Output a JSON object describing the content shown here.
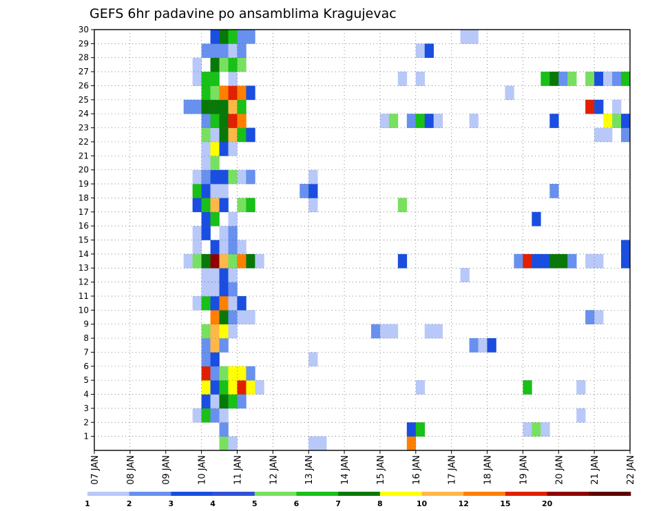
{
  "chart_data": {
    "type": "heatmap",
    "title": "GEFS 6hr padavine po ansamblima Kragujevac",
    "xlabel": "",
    "ylabel": "",
    "x_ticks": [
      "07 JAN",
      "08 JAN",
      "09 JAN",
      "10 JAN",
      "11 JAN",
      "12 JAN",
      "13 JAN",
      "14 JAN",
      "15 JAN",
      "16 JAN",
      "17 JAN",
      "18 JAN",
      "19 JAN",
      "20 JAN",
      "21 JAN",
      "22 JAN"
    ],
    "y_ticks": [
      1,
      2,
      3,
      4,
      5,
      6,
      7,
      8,
      9,
      10,
      11,
      12,
      13,
      14,
      15,
      16,
      17,
      18,
      19,
      20,
      21,
      22,
      23,
      24,
      25,
      26,
      27,
      28,
      29,
      30
    ],
    "xlim": [
      "07 JAN 00z",
      "22 JAN 00z"
    ],
    "ylim": [
      0,
      30
    ],
    "grid": true,
    "timestep_hours": 6,
    "legend": {
      "position": "bottom",
      "levels": [
        "1",
        "2",
        "3",
        "4",
        "5",
        "6",
        "7",
        "8",
        "10",
        "12",
        "15",
        "20"
      ],
      "colors": [
        "#b8c8f8",
        "#6890ee",
        "#1a4ee0",
        "#3050d8",
        "#78e060",
        "#18c018",
        "#087808",
        "#ffff00",
        "#ffb848",
        "#ff8000",
        "#e02000",
        "#900000",
        "#600000"
      ]
    },
    "cells": [
      [
        "10 JAN 12z",
        0,
        "#78e060"
      ],
      [
        "10 JAN 18z",
        0,
        "#b8c8f8"
      ],
      [
        "15 JAN 18z",
        0,
        "#ff8000"
      ],
      [
        "13 JAN 00z",
        0,
        "#b8c8f8"
      ],
      [
        "13 JAN 06z",
        0,
        "#b8c8f8"
      ],
      [
        "10 JAN 12z",
        1,
        "#6890ee"
      ],
      [
        "15 JAN 18z",
        1,
        "#1a4ee0"
      ],
      [
        "16 JAN 00z",
        1,
        "#18c018"
      ],
      [
        "19 JAN 00z",
        1,
        "#b8c8f8"
      ],
      [
        "19 JAN 06z",
        1,
        "#78e060"
      ],
      [
        "19 JAN 12z",
        1,
        "#b8c8f8"
      ],
      [
        "09 JAN 18z",
        2,
        "#b8c8f8"
      ],
      [
        "10 JAN 00z",
        2,
        "#18c018"
      ],
      [
        "10 JAN 06z",
        2,
        "#6890ee"
      ],
      [
        "10 JAN 12z",
        2,
        "#b8c8f8"
      ],
      [
        "20 JAN 12z",
        2,
        "#b8c8f8"
      ],
      [
        "10 JAN 00z",
        3,
        "#1a4ee0"
      ],
      [
        "10 JAN 06z",
        3,
        "#b8c8f8"
      ],
      [
        "10 JAN 12z",
        3,
        "#087808"
      ],
      [
        "10 JAN 18z",
        3,
        "#18c018"
      ],
      [
        "11 JAN 00z",
        3,
        "#6890ee"
      ],
      [
        "10 JAN 00z",
        4,
        "#ffff00"
      ],
      [
        "10 JAN 06z",
        4,
        "#1a4ee0"
      ],
      [
        "10 JAN 12z",
        4,
        "#18c018"
      ],
      [
        "10 JAN 18z",
        4,
        "#ffff00"
      ],
      [
        "11 JAN 00z",
        4,
        "#e02000"
      ],
      [
        "11 JAN 06z",
        4,
        "#ffff00"
      ],
      [
        "11 JAN 12z",
        4,
        "#b8c8f8"
      ],
      [
        "16 JAN 00z",
        4,
        "#b8c8f8"
      ],
      [
        "19 JAN 00z",
        4,
        "#18c018"
      ],
      [
        "20 JAN 12z",
        4,
        "#b8c8f8"
      ],
      [
        "10 JAN 00z",
        5,
        "#e02000"
      ],
      [
        "10 JAN 06z",
        5,
        "#6890ee"
      ],
      [
        "10 JAN 12z",
        5,
        "#78e060"
      ],
      [
        "10 JAN 18z",
        5,
        "#ffff00"
      ],
      [
        "11 JAN 00z",
        5,
        "#ffff00"
      ],
      [
        "11 JAN 06z",
        5,
        "#6890ee"
      ],
      [
        "10 JAN 00z",
        6,
        "#6890ee"
      ],
      [
        "10 JAN 06z",
        6,
        "#1a4ee0"
      ],
      [
        "13 JAN 00z",
        6,
        "#b8c8f8"
      ],
      [
        "10 JAN 00z",
        7,
        "#6890ee"
      ],
      [
        "10 JAN 06z",
        7,
        "#ffb848"
      ],
      [
        "10 JAN 12z",
        7,
        "#6890ee"
      ],
      [
        "17 JAN 12z",
        7,
        "#6890ee"
      ],
      [
        "17 JAN 18z",
        7,
        "#b8c8f8"
      ],
      [
        "18 JAN 00z",
        7,
        "#1a4ee0"
      ],
      [
        "10 JAN 00z",
        8,
        "#78e060"
      ],
      [
        "10 JAN 06z",
        8,
        "#ffb848"
      ],
      [
        "10 JAN 12z",
        8,
        "#ffff00"
      ],
      [
        "10 JAN 18z",
        8,
        "#b8c8f8"
      ],
      [
        "14 JAN 18z",
        8,
        "#6890ee"
      ],
      [
        "15 JAN 00z",
        8,
        "#b8c8f8"
      ],
      [
        "15 JAN 06z",
        8,
        "#b8c8f8"
      ],
      [
        "16 JAN 06z",
        8,
        "#b8c8f8"
      ],
      [
        "16 JAN 12z",
        8,
        "#b8c8f8"
      ],
      [
        "10 JAN 06z",
        9,
        "#ff8000"
      ],
      [
        "10 JAN 12z",
        9,
        "#087808"
      ],
      [
        "10 JAN 18z",
        9,
        "#6890ee"
      ],
      [
        "11 JAN 00z",
        9,
        "#b8c8f8"
      ],
      [
        "11 JAN 06z",
        9,
        "#b8c8f8"
      ],
      [
        "20 JAN 18z",
        9,
        "#6890ee"
      ],
      [
        "21 JAN 00z",
        9,
        "#b8c8f8"
      ],
      [
        "09 JAN 18z",
        10,
        "#b8c8f8"
      ],
      [
        "10 JAN 00z",
        10,
        "#18c018"
      ],
      [
        "10 JAN 06z",
        10,
        "#1a4ee0"
      ],
      [
        "10 JAN 12z",
        10,
        "#ff8000"
      ],
      [
        "10 JAN 18z",
        10,
        "#b8c8f8"
      ],
      [
        "11 JAN 00z",
        10,
        "#1a4ee0"
      ],
      [
        "10 JAN 00z",
        11,
        "#b8c8f8"
      ],
      [
        "10 JAN 06z",
        11,
        "#b8c8f8"
      ],
      [
        "10 JAN 12z",
        11,
        "#1a4ee0"
      ],
      [
        "10 JAN 18z",
        11,
        "#6890ee"
      ],
      [
        "10 JAN 00z",
        12,
        "#b8c8f8"
      ],
      [
        "10 JAN 06z",
        12,
        "#b8c8f8"
      ],
      [
        "10 JAN 12z",
        12,
        "#1a4ee0"
      ],
      [
        "10 JAN 18z",
        12,
        "#b8c8f8"
      ],
      [
        "17 JAN 06z",
        12,
        "#b8c8f8"
      ],
      [
        "10 JAN 06z",
        13,
        "#087808"
      ],
      [
        "10 JAN 12z",
        13,
        "#ffff00"
      ],
      [
        "10 JAN 18z",
        13,
        "#78e060"
      ],
      [
        "11 JAN 00z",
        13,
        "#6890ee"
      ],
      [
        "09 JAN 12z",
        13,
        "#b8c8f8"
      ],
      [
        "09 JAN 18z",
        13,
        "#78e060"
      ],
      [
        "10 JAN 00z",
        13,
        "#087808"
      ],
      [
        "10 JAN 06z",
        13,
        "#900000"
      ],
      [
        "10 JAN 12z",
        13,
        "#ffb848"
      ],
      [
        "10 JAN 18z",
        13,
        "#78e060"
      ],
      [
        "11 JAN 00z",
        13,
        "#ff8000"
      ],
      [
        "11 JAN 06z",
        13,
        "#087808"
      ],
      [
        "11 JAN 12z",
        13,
        "#b8c8f8"
      ],
      [
        "15 JAN 12z",
        13,
        "#1a4ee0"
      ],
      [
        "18 JAN 18z",
        13,
        "#6890ee"
      ],
      [
        "19 JAN 00z",
        13,
        "#e02000"
      ],
      [
        "19 JAN 06z",
        13,
        "#1a4ee0"
      ],
      [
        "19 JAN 12z",
        13,
        "#1a4ee0"
      ],
      [
        "19 JAN 18z",
        13,
        "#087808"
      ],
      [
        "20 JAN 00z",
        13,
        "#087808"
      ],
      [
        "20 JAN 06z",
        13,
        "#6890ee"
      ],
      [
        "20 JAN 18z",
        13,
        "#b8c8f8"
      ],
      [
        "21 JAN 00z",
        13,
        "#b8c8f8"
      ],
      [
        "21 JAN 18z",
        13,
        "#1a4ee0"
      ],
      [
        "09 JAN 18z",
        14,
        "#b8c8f8"
      ],
      [
        "10 JAN 06z",
        14,
        "#1a4ee0"
      ],
      [
        "10 JAN 12z",
        14,
        "#b8c8f8"
      ],
      [
        "10 JAN 18z",
        14,
        "#6890ee"
      ],
      [
        "11 JAN 00z",
        14,
        "#b8c8f8"
      ],
      [
        "21 JAN 18z",
        14,
        "#1a4ee0"
      ],
      [
        "09 JAN 18z",
        15,
        "#b8c8f8"
      ],
      [
        "10 JAN 00z",
        15,
        "#1a4ee0"
      ],
      [
        "10 JAN 12z",
        15,
        "#b8c8f8"
      ],
      [
        "10 JAN 18z",
        15,
        "#6890ee"
      ],
      [
        "10 JAN 00z",
        16,
        "#1a4ee0"
      ],
      [
        "10 JAN 06z",
        16,
        "#18c018"
      ],
      [
        "10 JAN 18z",
        16,
        "#b8c8f8"
      ],
      [
        "19 JAN 06z",
        16,
        "#1a4ee0"
      ],
      [
        "09 JAN 18z",
        17,
        "#1a4ee0"
      ],
      [
        "10 JAN 00z",
        17,
        "#18c018"
      ],
      [
        "10 JAN 06z",
        17,
        "#ffb848"
      ],
      [
        "10 JAN 12z",
        17,
        "#1a4ee0"
      ],
      [
        "11 JAN 00z",
        17,
        "#78e060"
      ],
      [
        "11 JAN 06z",
        17,
        "#18c018"
      ],
      [
        "13 JAN 00z",
        17,
        "#b8c8f8"
      ],
      [
        "15 JAN 12z",
        17,
        "#78e060"
      ],
      [
        "09 JAN 18z",
        18,
        "#18c018"
      ],
      [
        "10 JAN 00z",
        18,
        "#1a4ee0"
      ],
      [
        "10 JAN 06z",
        18,
        "#b8c8f8"
      ],
      [
        "10 JAN 12z",
        18,
        "#b8c8f8"
      ],
      [
        "12 JAN 18z",
        18,
        "#6890ee"
      ],
      [
        "13 JAN 00z",
        18,
        "#1a4ee0"
      ],
      [
        "19 JAN 18z",
        18,
        "#6890ee"
      ],
      [
        "09 JAN 18z",
        19,
        "#b8c8f8"
      ],
      [
        "10 JAN 00z",
        19,
        "#6890ee"
      ],
      [
        "10 JAN 06z",
        19,
        "#1a4ee0"
      ],
      [
        "10 JAN 12z",
        19,
        "#1a4ee0"
      ],
      [
        "10 JAN 18z",
        19,
        "#78e060"
      ],
      [
        "11 JAN 00z",
        19,
        "#b8c8f8"
      ],
      [
        "11 JAN 06z",
        19,
        "#6890ee"
      ],
      [
        "13 JAN 00z",
        19,
        "#b8c8f8"
      ],
      [
        "10 JAN 00z",
        20,
        "#b8c8f8"
      ],
      [
        "10 JAN 06z",
        20,
        "#78e060"
      ],
      [
        "10 JAN 00z",
        21,
        "#b8c8f8"
      ],
      [
        "10 JAN 06z",
        21,
        "#ffff00"
      ],
      [
        "10 JAN 12z",
        21,
        "#1a4ee0"
      ],
      [
        "10 JAN 18z",
        21,
        "#b8c8f8"
      ],
      [
        "10 JAN 00z",
        22,
        "#78e060"
      ],
      [
        "10 JAN 06z",
        22,
        "#b8c8f8"
      ],
      [
        "10 JAN 12z",
        22,
        "#087808"
      ],
      [
        "10 JAN 18z",
        22,
        "#ffb848"
      ],
      [
        "11 JAN 00z",
        22,
        "#18c018"
      ],
      [
        "11 JAN 06z",
        22,
        "#1a4ee0"
      ],
      [
        "21 JAN 00z",
        22,
        "#b8c8f8"
      ],
      [
        "21 JAN 06z",
        22,
        "#b8c8f8"
      ],
      [
        "21 JAN 18z",
        22,
        "#6890ee"
      ],
      [
        "10 JAN 00z",
        23,
        "#6890ee"
      ],
      [
        "10 JAN 06z",
        23,
        "#18c018"
      ],
      [
        "10 JAN 12z",
        23,
        "#087808"
      ],
      [
        "10 JAN 18z",
        23,
        "#e02000"
      ],
      [
        "11 JAN 00z",
        23,
        "#ff8000"
      ],
      [
        "15 JAN 00z",
        23,
        "#b8c8f8"
      ],
      [
        "15 JAN 06z",
        23,
        "#78e060"
      ],
      [
        "15 JAN 18z",
        23,
        "#6890ee"
      ],
      [
        "16 JAN 00z",
        23,
        "#18c018"
      ],
      [
        "16 JAN 06z",
        23,
        "#1a4ee0"
      ],
      [
        "16 JAN 12z",
        23,
        "#b8c8f8"
      ],
      [
        "17 JAN 12z",
        23,
        "#b8c8f8"
      ],
      [
        "19 JAN 18z",
        23,
        "#1a4ee0"
      ],
      [
        "21 JAN 06z",
        23,
        "#ffff00"
      ],
      [
        "21 JAN 12z",
        23,
        "#78e060"
      ],
      [
        "21 JAN 18z",
        23,
        "#1a4ee0"
      ],
      [
        "09 JAN 12z",
        24,
        "#6890ee"
      ],
      [
        "09 JAN 18z",
        24,
        "#6890ee"
      ],
      [
        "10 JAN 00z",
        24,
        "#087808"
      ],
      [
        "10 JAN 06z",
        24,
        "#087808"
      ],
      [
        "10 JAN 12z",
        24,
        "#087808"
      ],
      [
        "10 JAN 18z",
        24,
        "#ffb848"
      ],
      [
        "11 JAN 00z",
        24,
        "#18c018"
      ],
      [
        "20 JAN 18z",
        24,
        "#e02000"
      ],
      [
        "21 JAN 00z",
        24,
        "#1a4ee0"
      ],
      [
        "21 JAN 12z",
        24,
        "#b8c8f8"
      ],
      [
        "10 JAN 00z",
        25,
        "#18c018"
      ],
      [
        "10 JAN 06z",
        25,
        "#78e060"
      ],
      [
        "10 JAN 12z",
        25,
        "#ff8000"
      ],
      [
        "10 JAN 18z",
        25,
        "#e02000"
      ],
      [
        "11 JAN 00z",
        25,
        "#ff8000"
      ],
      [
        "11 JAN 06z",
        25,
        "#1a4ee0"
      ],
      [
        "18 JAN 12z",
        25,
        "#b8c8f8"
      ],
      [
        "09 JAN 18z",
        26,
        "#b8c8f8"
      ],
      [
        "10 JAN 00z",
        26,
        "#18c018"
      ],
      [
        "10 JAN 06z",
        26,
        "#18c018"
      ],
      [
        "10 JAN 18z",
        26,
        "#b8c8f8"
      ],
      [
        "15 JAN 12z",
        26,
        "#b8c8f8"
      ],
      [
        "16 JAN 00z",
        26,
        "#b8c8f8"
      ],
      [
        "19 JAN 12z",
        26,
        "#18c018"
      ],
      [
        "19 JAN 18z",
        26,
        "#087808"
      ],
      [
        "20 JAN 00z",
        26,
        "#6890ee"
      ],
      [
        "20 JAN 06z",
        26,
        "#78e060"
      ],
      [
        "20 JAN 18z",
        26,
        "#78e060"
      ],
      [
        "21 JAN 00z",
        26,
        "#1a4ee0"
      ],
      [
        "21 JAN 06z",
        26,
        "#b8c8f8"
      ],
      [
        "21 JAN 12z",
        26,
        "#6890ee"
      ],
      [
        "21 JAN 18z",
        26,
        "#18c018"
      ],
      [
        "09 JAN 18z",
        27,
        "#b8c8f8"
      ],
      [
        "10 JAN 06z",
        27,
        "#087808"
      ],
      [
        "10 JAN 12z",
        27,
        "#78e060"
      ],
      [
        "10 JAN 18z",
        27,
        "#18c018"
      ],
      [
        "11 JAN 00z",
        27,
        "#78e060"
      ],
      [
        "10 JAN 00z",
        28,
        "#6890ee"
      ],
      [
        "10 JAN 06z",
        28,
        "#6890ee"
      ],
      [
        "10 JAN 12z",
        28,
        "#6890ee"
      ],
      [
        "10 JAN 18z",
        28,
        "#b8c8f8"
      ],
      [
        "11 JAN 00z",
        28,
        "#6890ee"
      ],
      [
        "16 JAN 00z",
        28,
        "#b8c8f8"
      ],
      [
        "16 JAN 06z",
        28,
        "#1a4ee0"
      ],
      [
        "10 JAN 06z",
        29,
        "#1a4ee0"
      ],
      [
        "10 JAN 12z",
        29,
        "#087808"
      ],
      [
        "10 JAN 18z",
        29,
        "#18c018"
      ],
      [
        "11 JAN 00z",
        29,
        "#6890ee"
      ],
      [
        "11 JAN 06z",
        29,
        "#6890ee"
      ],
      [
        "17 JAN 06z",
        29,
        "#b8c8f8"
      ],
      [
        "17 JAN 12z",
        29,
        "#b8c8f8"
      ]
    ]
  }
}
